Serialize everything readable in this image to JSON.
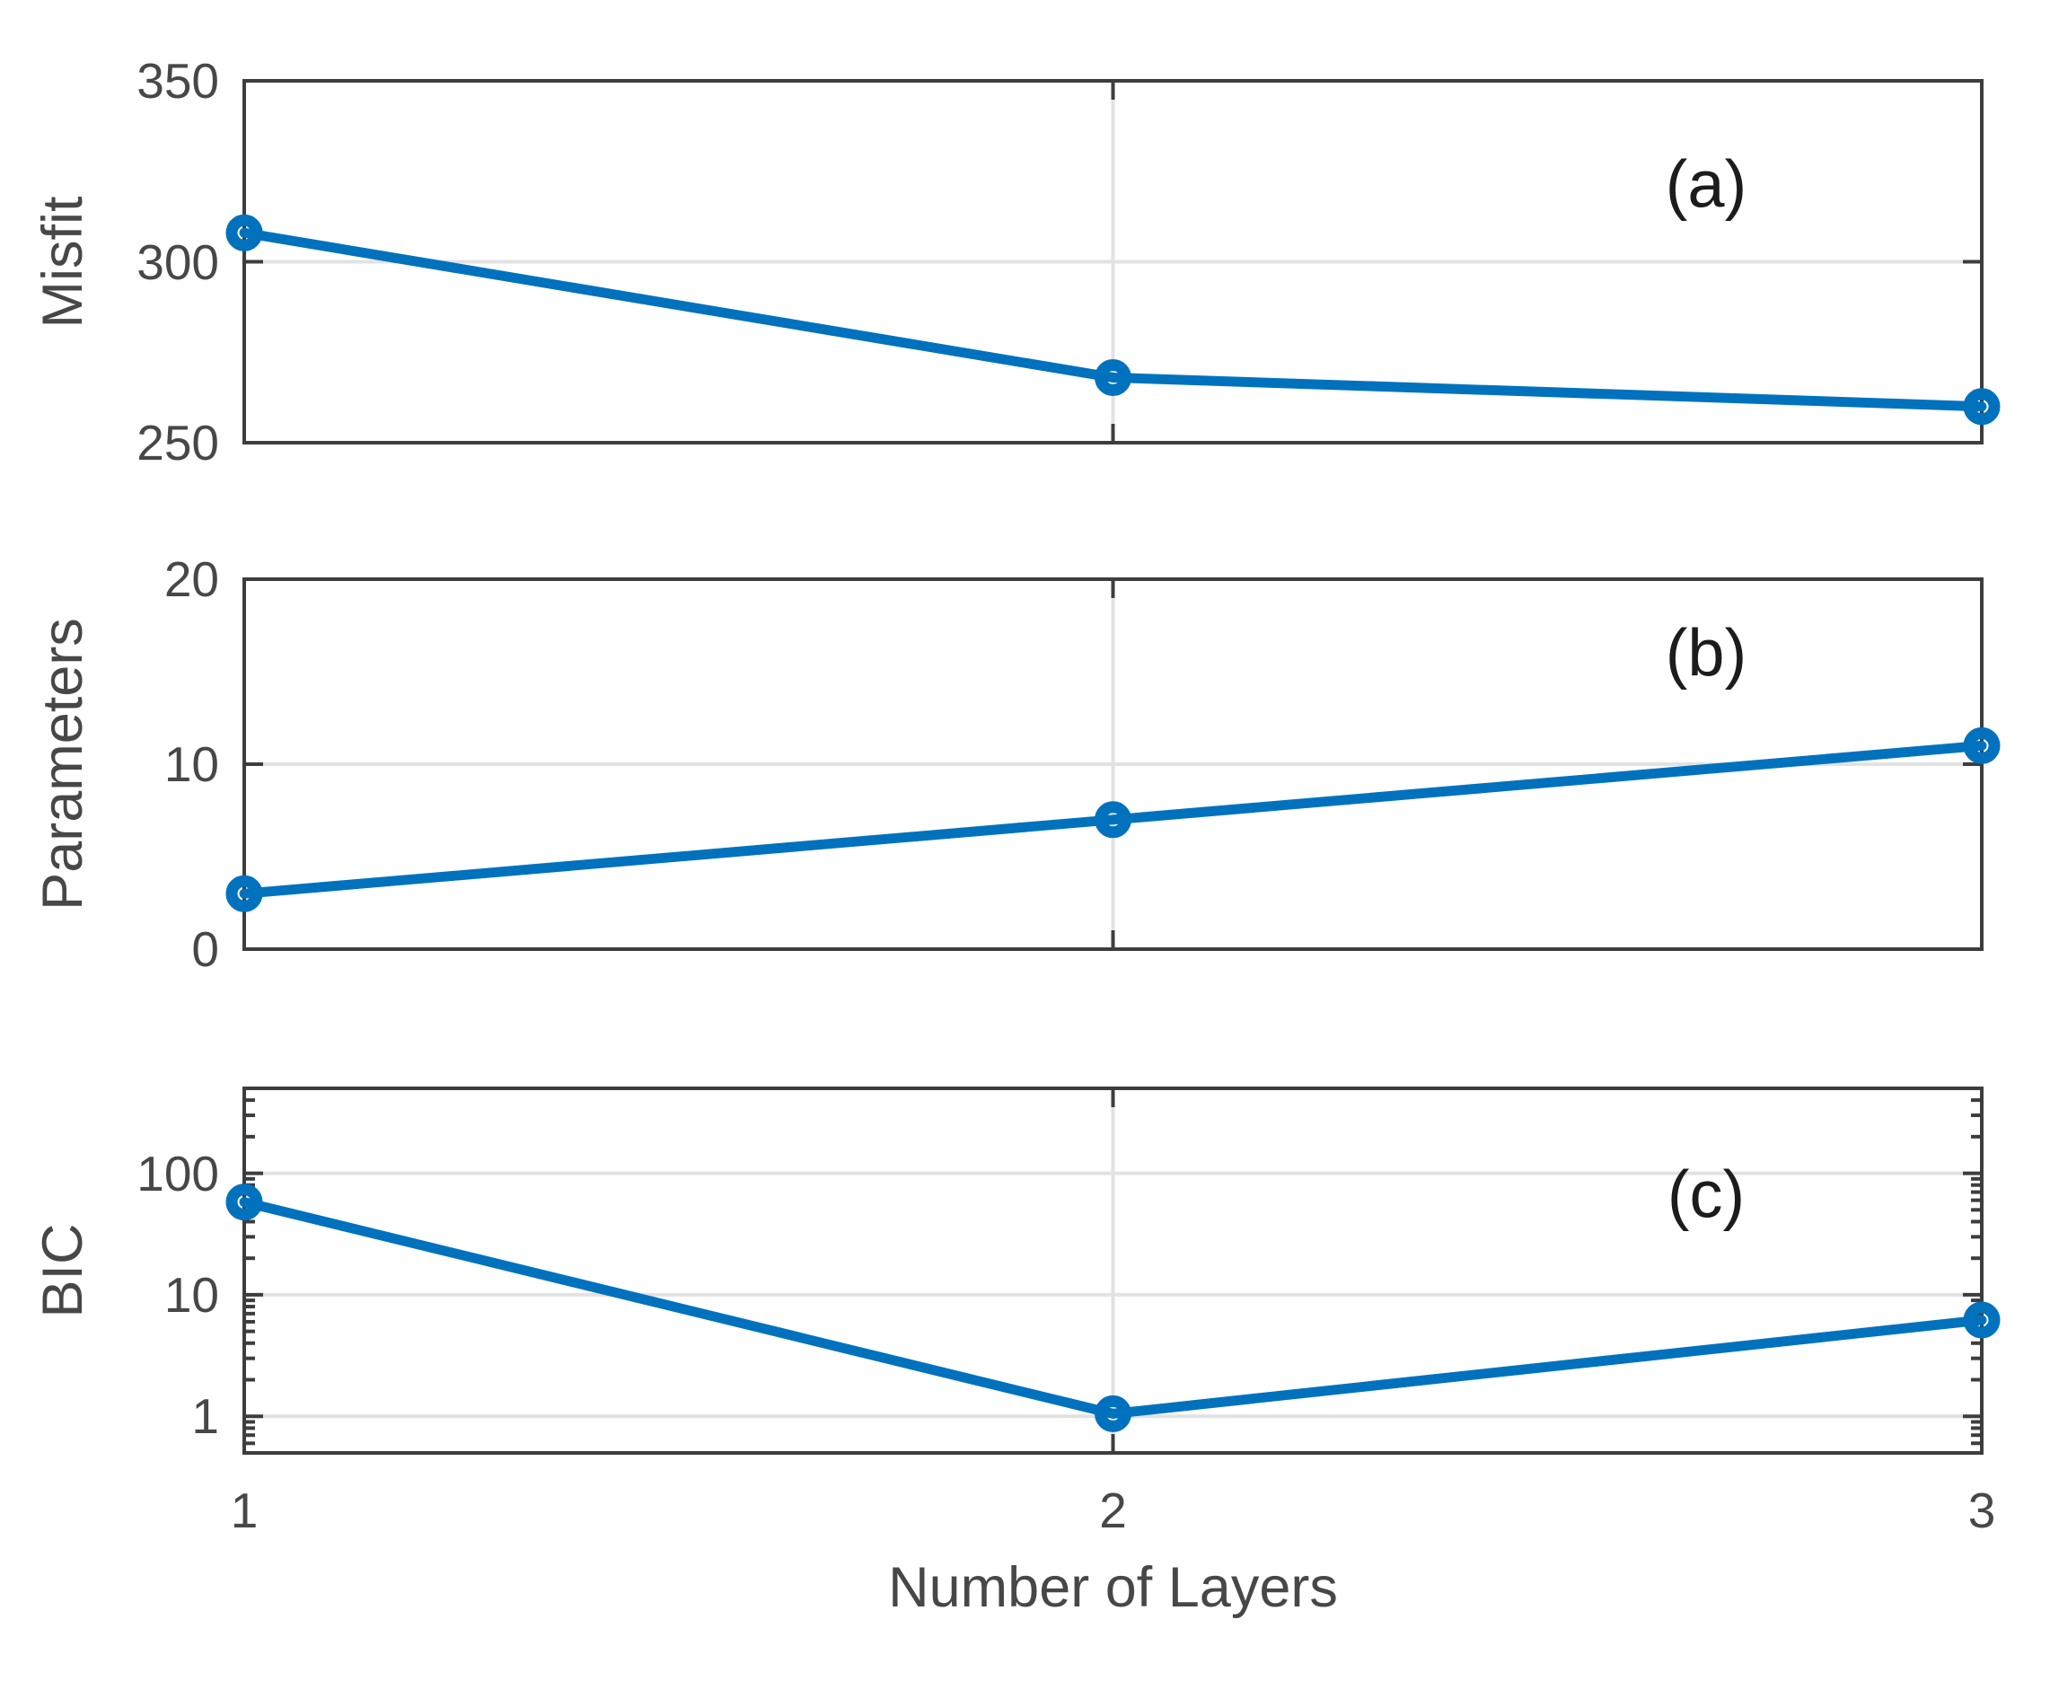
{
  "x_axis": {
    "label": "Number of Layers",
    "tick_labels": [
      "1",
      "2",
      "3"
    ],
    "tick_values": [
      1,
      2,
      3
    ],
    "xlim": [
      1,
      3
    ]
  },
  "colors": {
    "line": "#0072BD",
    "axis": "#3d3d3d",
    "grid": "#e2e2e2",
    "text": "#474747"
  },
  "chart_data": [
    {
      "type": "line",
      "panel_label": "(a)",
      "ylabel": "Misfit",
      "x": [
        1,
        2,
        3
      ],
      "y": [
        308,
        268,
        260
      ],
      "ylim": [
        250,
        350
      ],
      "yscale": "linear",
      "ytick_values": [
        250,
        300,
        350
      ],
      "ytick_labels": [
        "250",
        "300",
        "350"
      ],
      "grid": "on",
      "legend": "none",
      "marker": "circle"
    },
    {
      "type": "line",
      "panel_label": "(b)",
      "ylabel": "Parameters",
      "x": [
        1,
        2,
        3
      ],
      "y": [
        3,
        7,
        11
      ],
      "ylim": [
        0,
        20
      ],
      "yscale": "linear",
      "ytick_values": [
        0,
        10,
        20
      ],
      "ytick_labels": [
        "0",
        "10",
        "20"
      ],
      "grid": "on",
      "legend": "none",
      "marker": "circle"
    },
    {
      "type": "line",
      "panel_label": "(c)",
      "ylabel": "BIC",
      "x": [
        1,
        2,
        3
      ],
      "y": [
        58,
        1.05,
        6.2
      ],
      "ylim": [
        0.5,
        500
      ],
      "yscale": "log",
      "ytick_values": [
        1,
        10,
        100
      ],
      "ytick_labels": [
        "1",
        "10",
        "100"
      ],
      "grid": "on",
      "legend": "none",
      "marker": "circle"
    }
  ]
}
